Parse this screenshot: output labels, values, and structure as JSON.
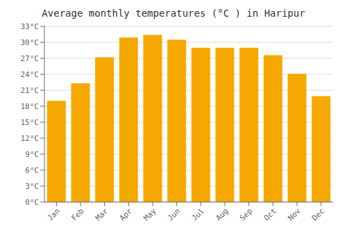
{
  "chart_data": {
    "type": "bar",
    "title": "Average monthly temperatures (°C ) in Haripur",
    "categories": [
      "Jan",
      "Feb",
      "Mar",
      "Apr",
      "May",
      "Jun",
      "Jul",
      "Aug",
      "Sep",
      "Oct",
      "Nov",
      "Dec"
    ],
    "values": [
      19.0,
      22.3,
      27.2,
      30.9,
      31.4,
      30.5,
      29.0,
      29.0,
      29.0,
      27.6,
      24.1,
      19.9
    ],
    "color": "#F5A800",
    "ylim": [
      0,
      33
    ],
    "yticks": [
      {
        "value": 0,
        "label": "0°C"
      },
      {
        "value": 3,
        "label": "3°C"
      },
      {
        "value": 6,
        "label": "6°C"
      },
      {
        "value": 9,
        "label": "9°C"
      },
      {
        "value": 12,
        "label": "12°C"
      },
      {
        "value": 15,
        "label": "15°C"
      },
      {
        "value": 18,
        "label": "18°C"
      },
      {
        "value": 21,
        "label": "21°C"
      },
      {
        "value": 24,
        "label": "24°C"
      },
      {
        "value": 27,
        "label": "27°C"
      },
      {
        "value": 30,
        "label": "30°C"
      },
      {
        "value": 33,
        "label": "33°C"
      }
    ],
    "grid": true
  }
}
